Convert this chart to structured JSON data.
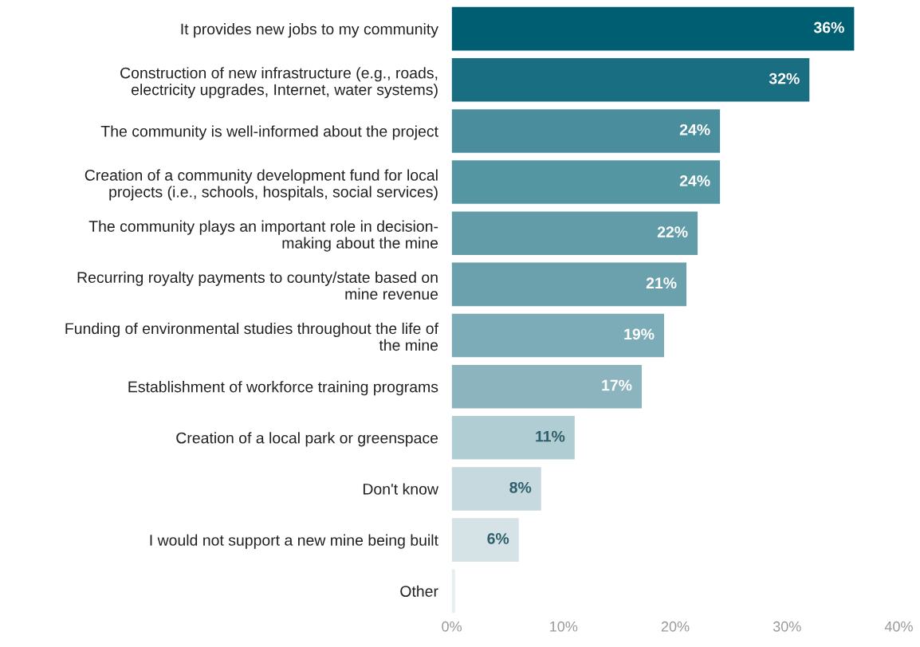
{
  "chart_data": {
    "type": "bar",
    "orientation": "horizontal",
    "categories": [
      "It provides new jobs to my community",
      "Construction of new infrastructure (e.g., roads,\nelectricity upgrades, Internet, water systems)",
      "The community is well-informed about the project",
      "Creation of a community development fund for local\nprojects (i.e., schools, hospitals, social services)",
      "The community plays an important role in decision-\nmaking about the mine",
      "Recurring royalty payments to county/state based on\nmine revenue",
      "Funding of environmental studies throughout the life of\nthe mine",
      "Establishment of workforce training programs",
      "Creation of a local park or greenspace",
      "Don't know",
      "I would not support a new mine being built",
      "Other"
    ],
    "values": [
      36,
      32,
      24,
      24,
      22,
      21,
      19,
      17,
      11,
      8,
      6,
      0.3
    ],
    "value_labels": [
      "36%",
      "32%",
      "24%",
      "24%",
      "22%",
      "21%",
      "19%",
      "17%",
      "11%",
      "8%",
      "6%",
      null
    ],
    "colors": [
      "#005e73",
      "#1a6e82",
      "#4a8e9d",
      "#5596a3",
      "#639ca9",
      "#6ba1ad",
      "#7cacb7",
      "#8bb4bf",
      "#b0cdd3",
      "#c5d9de",
      "#d5e3e7",
      "#e6eef0"
    ],
    "xlim": [
      0,
      40
    ],
    "xticks": [
      {
        "value": 0,
        "label": "0%"
      },
      {
        "value": 10,
        "label": "10%"
      },
      {
        "value": 20,
        "label": "20%"
      },
      {
        "value": 30,
        "label": "30%"
      },
      {
        "value": 40,
        "label": "40%"
      }
    ],
    "grid": false,
    "legend": false
  }
}
